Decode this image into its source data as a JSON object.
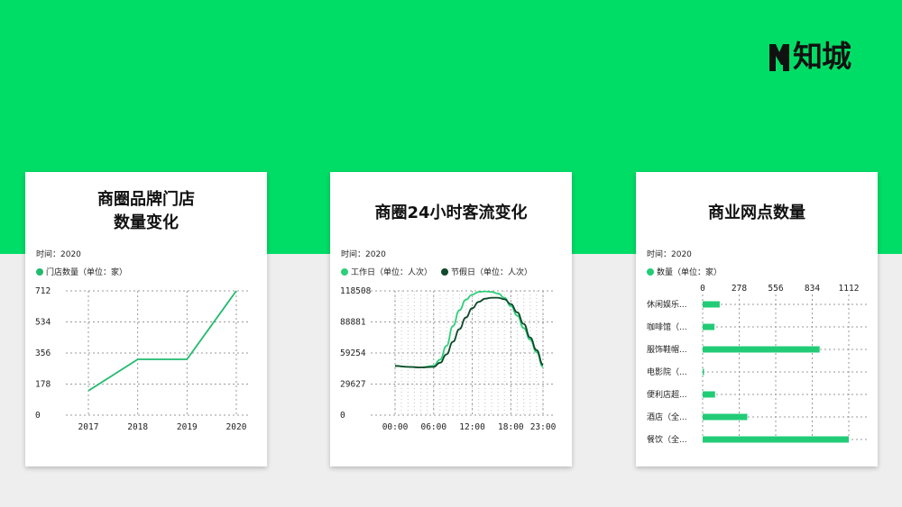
{
  "brand": {
    "logo_text": "知城",
    "color": "#00dd66"
  },
  "cards": [
    {
      "title_lines": [
        "商圈品牌门店",
        "数量变化"
      ],
      "time_label": "时间：2020"
    },
    {
      "title_lines": [
        "商圈24小时客流变化"
      ],
      "time_label": "时间：2020"
    },
    {
      "title_lines": [
        "商业网点数量"
      ],
      "time_label": "时间：2020"
    }
  ],
  "chart_data": [
    {
      "type": "line",
      "title": "商圈品牌门店数量变化",
      "categories": [
        "2017",
        "2018",
        "2019",
        "2020"
      ],
      "series": [
        {
          "name": "门店数量（单位：家）",
          "color": "#22bb6e",
          "values": [
            140,
            320,
            320,
            712
          ]
        }
      ],
      "yticks": [
        0,
        178,
        356,
        534,
        712
      ],
      "ylim": [
        0,
        712
      ],
      "grid": true
    },
    {
      "type": "line",
      "title": "商圈24小时客流变化",
      "xticks": [
        "00:00",
        "06:00",
        "12:00",
        "18:00",
        "23:00"
      ],
      "xlim": [
        0,
        23
      ],
      "yticks": [
        0,
        29627,
        59254,
        88881,
        118508
      ],
      "ylim": [
        0,
        118508
      ],
      "series": [
        {
          "name": "工作日（单位：人次）",
          "color": "#2ecf7a",
          "x": [
            0,
            2,
            4,
            6,
            7,
            8,
            9,
            10,
            11,
            12,
            13,
            14,
            15,
            16,
            17,
            18,
            19,
            20,
            21,
            22,
            23
          ],
          "values": [
            47000,
            46000,
            45500,
            47000,
            53000,
            66000,
            85000,
            100000,
            110000,
            115000,
            117500,
            118000,
            117500,
            116000,
            112000,
            104000,
            95000,
            83000,
            72000,
            60000,
            46000
          ]
        },
        {
          "name": "节假日（单位：人次）",
          "color": "#0d4a2a",
          "x": [
            0,
            2,
            4,
            6,
            7,
            8,
            9,
            10,
            11,
            12,
            13,
            14,
            15,
            16,
            17,
            18,
            19,
            20,
            21,
            22,
            23
          ],
          "values": [
            47000,
            46000,
            45500,
            46000,
            50000,
            58000,
            70000,
            82000,
            93000,
            102000,
            108000,
            111000,
            112000,
            112000,
            110500,
            106000,
            98000,
            87000,
            74000,
            62000,
            48000
          ]
        }
      ],
      "grid": true
    },
    {
      "type": "bar",
      "orientation": "horizontal",
      "title": "商业网点数量",
      "categories": [
        "休闲娱乐...",
        "咖啡馆（...",
        "服饰鞋帽...",
        "电影院（...",
        "便利店超...",
        "酒店（全...",
        "餐饮（全..."
      ],
      "values": [
        130,
        90,
        890,
        8,
        95,
        340,
        1112
      ],
      "series_name": "数量（单位：家）",
      "color": "#22cc77",
      "xticks": [
        0,
        278,
        556,
        834,
        1112
      ],
      "xlim": [
        0,
        1112
      ],
      "grid": true
    }
  ]
}
